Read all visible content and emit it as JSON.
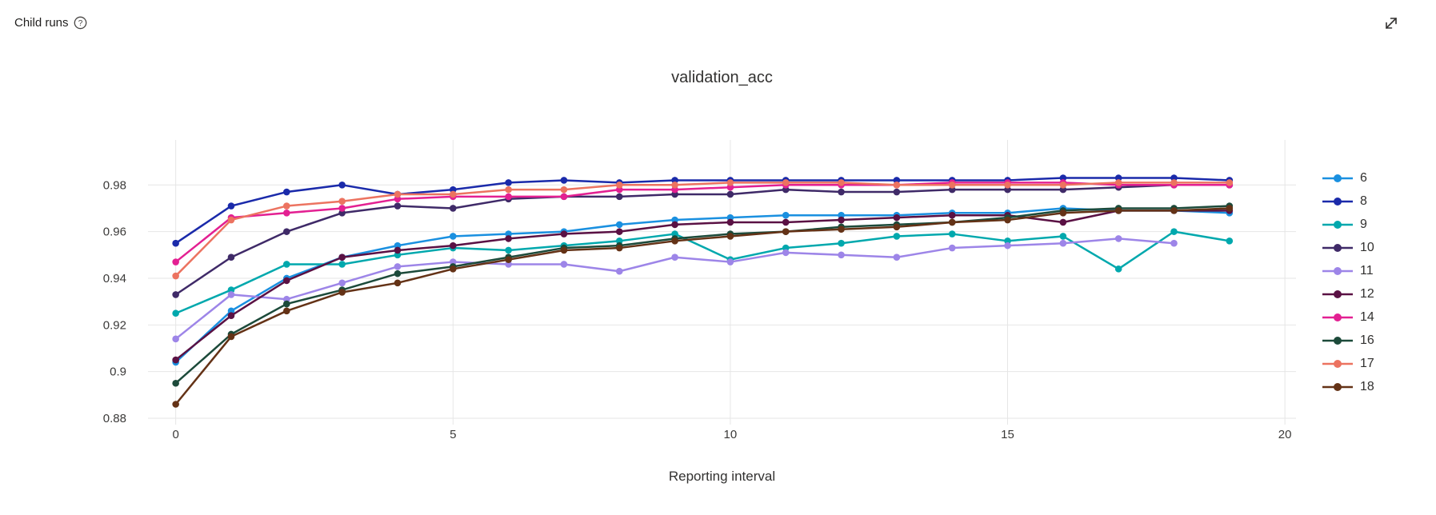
{
  "header": {
    "title": "Child runs",
    "help_icon": "question-circle",
    "expand_icon": "diagonal-expand"
  },
  "chart_data": {
    "type": "line",
    "title": "validation_acc",
    "xlabel": "Reporting interval",
    "ylabel": "validation_acc",
    "grid": true,
    "legend_position": "right",
    "xlim": [
      -0.5,
      20.2
    ],
    "ylim": [
      0.88,
      0.9993
    ],
    "x_ticks": [
      0,
      5,
      10,
      15,
      20
    ],
    "y_ticks": [
      0.98,
      0.96,
      0.94,
      0.92,
      0.9,
      0.88
    ],
    "x": [
      0,
      1,
      2,
      3,
      4,
      5,
      6,
      7,
      8,
      9,
      10,
      11,
      12,
      13,
      14,
      15,
      16,
      17,
      18,
      19
    ],
    "series": [
      {
        "name": "6",
        "color": "#1a90e0",
        "values": [
          0.904,
          0.926,
          0.94,
          0.949,
          0.954,
          0.958,
          0.959,
          0.96,
          0.963,
          0.965,
          0.966,
          0.967,
          0.967,
          0.967,
          0.968,
          0.968,
          0.97,
          0.969,
          0.969,
          0.968
        ]
      },
      {
        "name": "8",
        "color": "#1a2aaa",
        "values": [
          0.955,
          0.971,
          0.977,
          0.98,
          0.976,
          0.978,
          0.981,
          0.982,
          0.981,
          0.982,
          0.982,
          0.982,
          0.982,
          0.982,
          0.982,
          0.982,
          0.983,
          0.983,
          0.983,
          0.982
        ]
      },
      {
        "name": "9",
        "color": "#00a8ad",
        "values": [
          0.925,
          0.935,
          0.946,
          0.946,
          0.95,
          0.953,
          0.952,
          0.954,
          0.956,
          0.959,
          0.948,
          0.953,
          0.955,
          0.958,
          0.959,
          0.956,
          0.958,
          0.944,
          0.96,
          0.956
        ]
      },
      {
        "name": "10",
        "color": "#3f2a68",
        "values": [
          0.933,
          0.949,
          0.96,
          0.968,
          0.971,
          0.97,
          0.974,
          0.975,
          0.975,
          0.976,
          0.976,
          0.978,
          0.977,
          0.977,
          0.978,
          0.978,
          0.978,
          0.979,
          0.98,
          0.98
        ]
      },
      {
        "name": "11",
        "color": "#9d85e8",
        "values": [
          0.914,
          0.933,
          0.931,
          0.938,
          0.945,
          0.947,
          0.946,
          0.946,
          0.943,
          0.949,
          0.947,
          0.951,
          0.95,
          0.949,
          0.953,
          0.954,
          0.955,
          0.957,
          0.955
        ]
      },
      {
        "name": "12",
        "color": "#5a1144",
        "values": [
          0.905,
          0.924,
          0.939,
          0.949,
          0.952,
          0.954,
          0.957,
          0.959,
          0.96,
          0.963,
          0.964,
          0.964,
          0.965,
          0.966,
          0.967,
          0.967,
          0.964,
          0.969,
          0.969,
          0.969
        ]
      },
      {
        "name": "14",
        "color": "#e32092",
        "values": [
          0.947,
          0.966,
          0.968,
          0.97,
          0.974,
          0.975,
          0.975,
          0.975,
          0.978,
          0.978,
          0.979,
          0.98,
          0.98,
          0.98,
          0.981,
          0.981,
          0.981,
          0.98,
          0.98,
          0.98
        ]
      },
      {
        "name": "16",
        "color": "#1c4a3a",
        "values": [
          0.895,
          0.916,
          0.929,
          0.935,
          0.942,
          0.945,
          0.949,
          0.953,
          0.954,
          0.957,
          0.959,
          0.96,
          0.962,
          0.963,
          0.964,
          0.966,
          0.969,
          0.97,
          0.97,
          0.971
        ]
      },
      {
        "name": "17",
        "color": "#ec7360",
        "values": [
          0.941,
          0.965,
          0.971,
          0.973,
          0.976,
          0.976,
          0.978,
          0.978,
          0.98,
          0.98,
          0.981,
          0.981,
          0.981,
          0.98,
          0.98,
          0.98,
          0.98,
          0.981,
          0.981,
          0.981
        ]
      },
      {
        "name": "18",
        "color": "#643216",
        "values": [
          0.886,
          0.915,
          0.926,
          0.934,
          0.938,
          0.944,
          0.948,
          0.952,
          0.953,
          0.956,
          0.958,
          0.96,
          0.961,
          0.962,
          0.964,
          0.965,
          0.968,
          0.969,
          0.969,
          0.97
        ]
      }
    ]
  }
}
